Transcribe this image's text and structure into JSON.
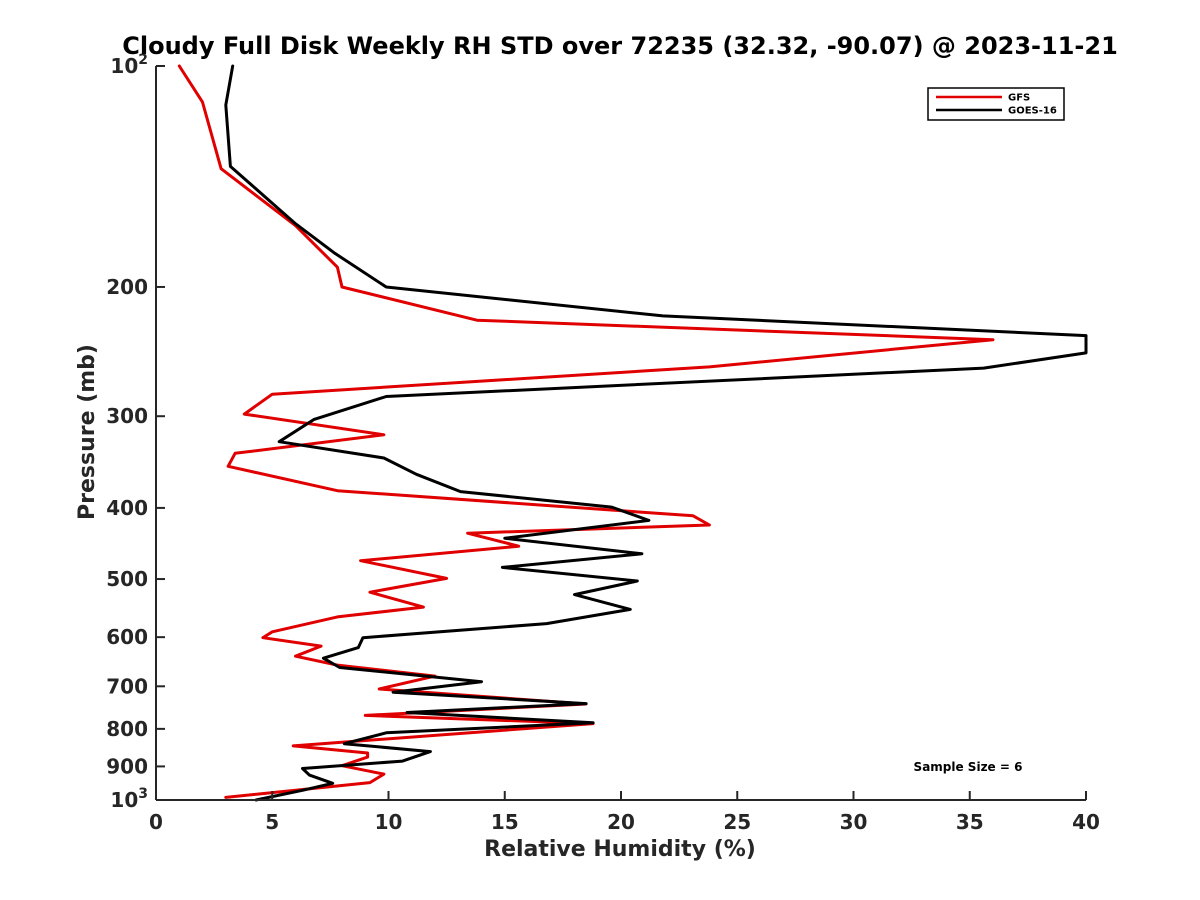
{
  "chart_data": {
    "type": "line",
    "title": "Cloudy Full Disk Weekly RH STD over 72235 (32.32, -90.07) @ 2023-11-21",
    "xlabel": "Relative Humidity (%)",
    "ylabel": "Pressure (mb)",
    "xlim": [
      0,
      40
    ],
    "ylim": [
      100,
      1000
    ],
    "yscale": "log",
    "y_reversed": true,
    "xticks": [
      0,
      5,
      10,
      15,
      20,
      25,
      30,
      35,
      40
    ],
    "yticks": [
      {
        "value": 100,
        "base": "10",
        "exp": "2"
      },
      {
        "value": 200,
        "label": "200"
      },
      {
        "value": 300,
        "label": "300"
      },
      {
        "value": 400,
        "label": "400"
      },
      {
        "value": 500,
        "label": "500"
      },
      {
        "value": 600,
        "label": "600"
      },
      {
        "value": 700,
        "label": "700"
      },
      {
        "value": 800,
        "label": "800"
      },
      {
        "value": 900,
        "label": "900"
      },
      {
        "value": 1000,
        "base": "10",
        "exp": "3"
      }
    ],
    "legend_position": "top-right",
    "annotation": "Sample Size = 6",
    "series": [
      {
        "name": "GFS",
        "color": "#e00000",
        "x": [
          1.0,
          2.0,
          2.8,
          6.0,
          7.8,
          8.0,
          13.8,
          36.0,
          23.8,
          5.0,
          3.8,
          9.8,
          3.4,
          3.1,
          7.8,
          23.1,
          23.8,
          13.4,
          15.6,
          8.8,
          12.5,
          9.2,
          11.5,
          7.8,
          5.0,
          4.6,
          7.1,
          6.0,
          7.8,
          12.0,
          9.6,
          18.5,
          9.0,
          18.8,
          5.9,
          9.1,
          9.1,
          8.0,
          9.8,
          9.2,
          3.0
        ],
        "y": [
          100,
          112,
          138,
          165,
          188,
          200,
          222,
          236,
          257,
          280,
          298,
          318,
          337,
          351,
          379,
          410,
          422,
          433,
          451,
          472,
          499,
          521,
          546,
          563,
          590,
          601,
          617,
          637,
          655,
          678,
          706,
          740,
          767,
          787,
          844,
          863,
          874,
          898,
          922,
          947,
          992
        ]
      },
      {
        "name": "GOES-16",
        "color": "#000000",
        "x": [
          3.3,
          3.0,
          3.2,
          6.0,
          7.7,
          9.9,
          21.8,
          40.0,
          40.0,
          35.6,
          9.9,
          6.8,
          5.3,
          9.8,
          11.2,
          13.1,
          19.6,
          21.2,
          15.0,
          20.9,
          14.9,
          20.7,
          18.0,
          20.4,
          16.8,
          8.9,
          8.7,
          7.2,
          7.9,
          14.0,
          10.2,
          18.5,
          10.8,
          18.8,
          9.9,
          8.1,
          11.8,
          10.6,
          6.3,
          6.6,
          7.6,
          6.3,
          4.3
        ],
        "y": [
          100,
          113,
          137,
          164,
          180,
          200,
          219,
          233,
          246,
          258,
          282,
          303,
          325,
          342,
          360,
          380,
          399,
          416,
          440,
          462,
          482,
          503,
          525,
          550,
          575,
          601,
          620,
          641,
          660,
          690,
          713,
          739,
          760,
          785,
          810,
          838,
          859,
          885,
          906,
          925,
          949,
          970,
          1000
        ]
      }
    ]
  }
}
